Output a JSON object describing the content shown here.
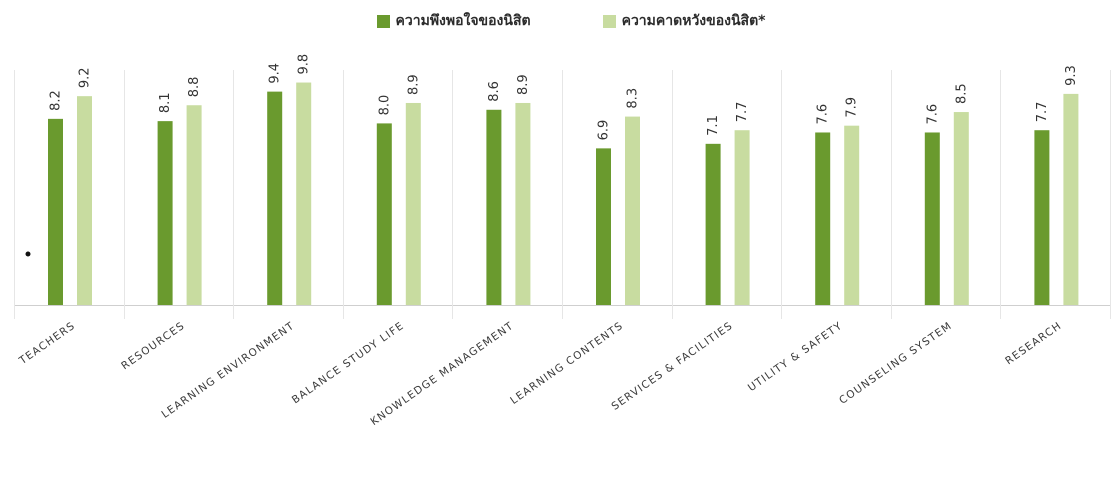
{
  "chart_data": {
    "type": "bar",
    "categories": [
      "TEACHERS",
      "RESOURCES",
      "LEARNING ENVIRONMENT",
      "BALANCE STUDY LIFE",
      "KNOWLEDGE  MANAGEMENT",
      "LEARNING CONTENTS",
      "SERVICES & FACILITIES",
      "UTILITY & SAFETY",
      "COUNSELING SYSTEM",
      "RESEARCH"
    ],
    "series": [
      {
        "name": "ความพึงพอใจของนิสิต",
        "color": "#6a9a2e",
        "values": [
          8.2,
          8.1,
          9.4,
          8.0,
          8.6,
          6.9,
          7.1,
          7.6,
          7.6,
          7.7
        ],
        "labels": [
          "8.2",
          "8.1",
          "9.4",
          "8.0",
          "8.6",
          "6.9",
          "7.1",
          "7.6",
          "7.6",
          "7.7"
        ]
      },
      {
        "name": "ความคาดหวังของนิสิต*",
        "color": "#c8dca0",
        "values": [
          9.2,
          8.8,
          9.8,
          8.9,
          8.9,
          8.3,
          7.7,
          7.9,
          8.5,
          9.3
        ],
        "labels": [
          "9.2",
          "8.8",
          "9.8",
          "8.9",
          "8.9",
          "8.3",
          "7.7",
          "7.9",
          "8.5",
          "9.3"
        ]
      }
    ],
    "title": "",
    "xlabel": "",
    "ylabel": "",
    "ylim": [
      0,
      10
    ],
    "grid": false,
    "legend_position": "top-center"
  }
}
